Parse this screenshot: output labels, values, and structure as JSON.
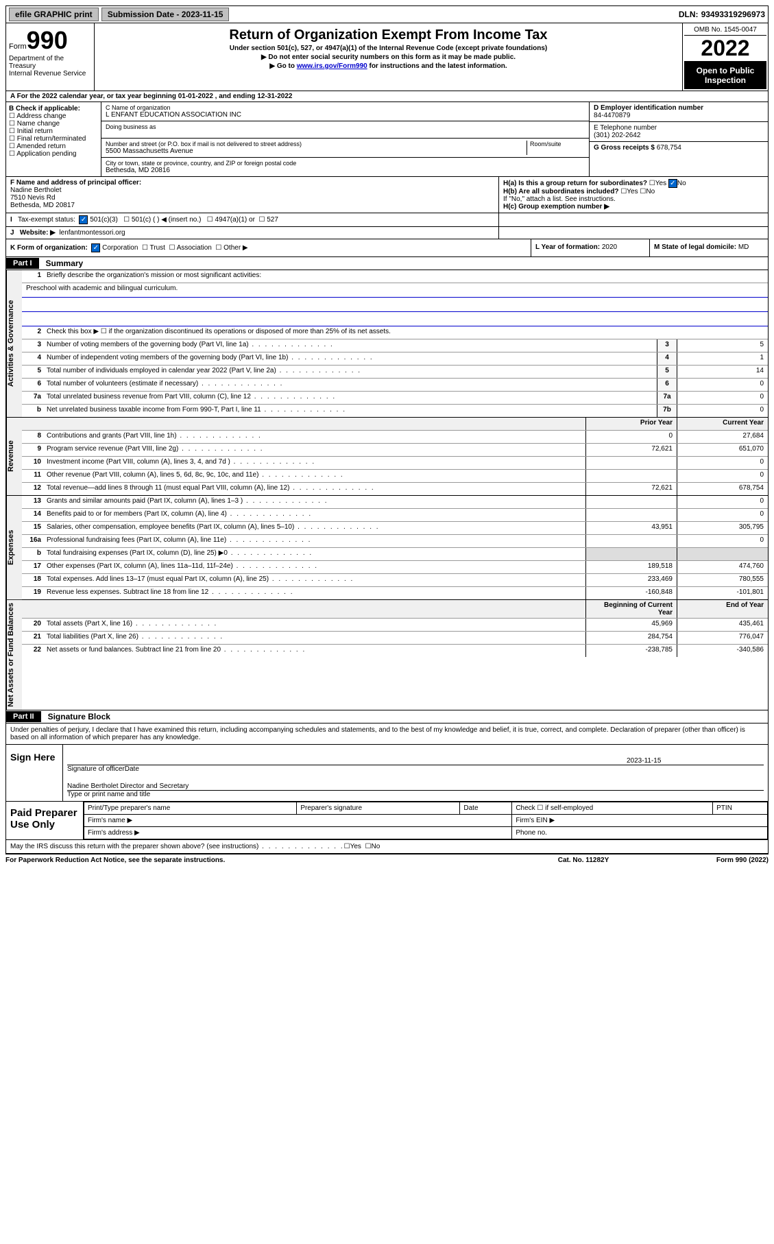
{
  "top": {
    "efile": "efile GRAPHIC print",
    "submission_label": "Submission Date - ",
    "submission_date": "2023-11-15",
    "dln_label": "DLN: ",
    "dln": "93493319296973"
  },
  "header": {
    "form_word": "Form",
    "form_num": "990",
    "title": "Return of Organization Exempt From Income Tax",
    "sub1": "Under section 501(c), 527, or 4947(a)(1) of the Internal Revenue Code (except private foundations)",
    "sub2": "▶ Do not enter social security numbers on this form as it may be made public.",
    "sub3_pre": "▶ Go to ",
    "sub3_link": "www.irs.gov/Form990",
    "sub3_post": " for instructions and the latest information.",
    "dept": "Department of the Treasury",
    "irs": "Internal Revenue Service",
    "omb": "OMB No. 1545-0047",
    "year": "2022",
    "open": "Open to Public Inspection"
  },
  "A": {
    "text": "A For the 2022 calendar year, or tax year beginning 01-01-2022     , and ending 12-31-2022"
  },
  "B": {
    "label": "B Check if applicable:",
    "opts": [
      "Address change",
      "Name change",
      "Initial return",
      "Final return/terminated",
      "Amended return",
      "Application pending"
    ]
  },
  "C": {
    "name_lbl": "C Name of organization",
    "name": "L ENFANT EDUCATION ASSOCIATION INC",
    "dba_lbl": "Doing business as",
    "street_lbl": "Number and street (or P.O. box if mail is not delivered to street address)",
    "room_lbl": "Room/suite",
    "street": "5500 Massachusetts Avenue",
    "city_lbl": "City or town, state or province, country, and ZIP or foreign postal code",
    "city": "Bethesda, MD  20816"
  },
  "D": {
    "lbl": "D Employer identification number",
    "val": "84-4470879"
  },
  "E": {
    "lbl": "E Telephone number",
    "val": "(301) 202-2642"
  },
  "G": {
    "lbl": "G Gross receipts $",
    "val": "678,754"
  },
  "F": {
    "lbl": "F  Name and address of principal officer:",
    "name": "Nadine Bertholet",
    "addr1": "7510 Nevis Rd",
    "addr2": "Bethesda, MD  20817"
  },
  "H": {
    "a": "H(a)  Is this a group return for subordinates?",
    "b": "H(b)  Are all subordinates included?",
    "b_note": "If \"No,\" attach a list. See instructions.",
    "c": "H(c)  Group exemption number ▶",
    "yes": "Yes",
    "no": "No"
  },
  "I": {
    "lbl": "I",
    "tax": "Tax-exempt status:",
    "c3": "501(c)(3)",
    "c": "501(c) (   ) ◀ (insert no.)",
    "a1": "4947(a)(1) or",
    "s527": "527"
  },
  "J": {
    "lbl": "J",
    "ws": "Website: ▶",
    "val": "lenfantmontessori.org"
  },
  "K": {
    "lbl": "K Form of organization:",
    "corp": "Corporation",
    "trust": "Trust",
    "assoc": "Association",
    "other": "Other ▶"
  },
  "L": {
    "lbl": "L Year of formation:",
    "val": "2020"
  },
  "M": {
    "lbl": "M State of legal domicile:",
    "val": "MD"
  },
  "part1": {
    "tab": "Part I",
    "title": "Summary"
  },
  "summary": {
    "l1_lbl": "Briefly describe the organization's mission or most significant activities:",
    "l1_txt": "Preschool with academic and bilingual curriculum.",
    "l2": "Check this box ▶ ☐  if the organization discontinued its operations or disposed of more than 25% of its net assets.",
    "l3": "Number of voting members of the governing body (Part VI, line 1a)",
    "l4": "Number of independent voting members of the governing body (Part VI, line 1b)",
    "l5": "Total number of individuals employed in calendar year 2022 (Part V, line 2a)",
    "l6": "Total number of volunteers (estimate if necessary)",
    "l7a": "Total unrelated business revenue from Part VIII, column (C), line 12",
    "l7b": "Net unrelated business taxable income from Form 990-T, Part I, line 11",
    "v3": "5",
    "v4": "1",
    "v5": "14",
    "v6": "0",
    "v7a": "0",
    "v7b": "0"
  },
  "revexp": {
    "price_hdr": "Prior Year",
    "cur_hdr": "Current Year",
    "rows": [
      {
        "n": "8",
        "t": "Contributions and grants (Part VIII, line 1h)",
        "p": "0",
        "c": "27,684"
      },
      {
        "n": "9",
        "t": "Program service revenue (Part VIII, line 2g)",
        "p": "72,621",
        "c": "651,070"
      },
      {
        "n": "10",
        "t": "Investment income (Part VIII, column (A), lines 3, 4, and 7d )",
        "p": "",
        "c": "0"
      },
      {
        "n": "11",
        "t": "Other revenue (Part VIII, column (A), lines 5, 6d, 8c, 9c, 10c, and 11e)",
        "p": "",
        "c": "0"
      },
      {
        "n": "12",
        "t": "Total revenue—add lines 8 through 11 (must equal Part VIII, column (A), line 12)",
        "p": "72,621",
        "c": "678,754"
      }
    ],
    "exp_rows": [
      {
        "n": "13",
        "t": "Grants and similar amounts paid (Part IX, column (A), lines 1–3 )",
        "p": "",
        "c": "0"
      },
      {
        "n": "14",
        "t": "Benefits paid to or for members (Part IX, column (A), line 4)",
        "p": "",
        "c": "0"
      },
      {
        "n": "15",
        "t": "Salaries, other compensation, employee benefits (Part IX, column (A), lines 5–10)",
        "p": "43,951",
        "c": "305,795"
      },
      {
        "n": "16a",
        "t": "Professional fundraising fees (Part IX, column (A), line 11e)",
        "p": "",
        "c": "0"
      },
      {
        "n": "b",
        "t": "Total fundraising expenses (Part IX, column (D), line 25) ▶0",
        "p": "—",
        "c": "—"
      },
      {
        "n": "17",
        "t": "Other expenses (Part IX, column (A), lines 11a–11d, 11f–24e)",
        "p": "189,518",
        "c": "474,760"
      },
      {
        "n": "18",
        "t": "Total expenses. Add lines 13–17 (must equal Part IX, column (A), line 25)",
        "p": "233,469",
        "c": "780,555"
      },
      {
        "n": "19",
        "t": "Revenue less expenses. Subtract line 18 from line 12",
        "p": "-160,848",
        "c": "-101,801"
      }
    ],
    "na_hdr_b": "Beginning of Current Year",
    "na_hdr_e": "End of Year",
    "na_rows": [
      {
        "n": "20",
        "t": "Total assets (Part X, line 16)",
        "p": "45,969",
        "c": "435,461"
      },
      {
        "n": "21",
        "t": "Total liabilities (Part X, line 26)",
        "p": "284,754",
        "c": "776,047"
      },
      {
        "n": "22",
        "t": "Net assets or fund balances. Subtract line 21 from line 20",
        "p": "-238,785",
        "c": "-340,586"
      }
    ]
  },
  "labels": {
    "gov": "Activities & Governance",
    "rev": "Revenue",
    "exp": "Expenses",
    "na": "Net Assets or Fund Balances"
  },
  "part2": {
    "tab": "Part II",
    "title": "Signature Block"
  },
  "sig": {
    "decl": "Under penalties of perjury, I declare that I have examined this return, including accompanying schedules and statements, and to the best of my knowledge and belief, it is true, correct, and complete. Declaration of preparer (other than officer) is based on all information of which preparer has any knowledge.",
    "sign_here": "Sign Here",
    "sig_of": "Signature of officer",
    "date": "Date",
    "date_val": "2023-11-15",
    "name": "Nadine Bertholet  Director and Secretary",
    "type_lbl": "Type or print name and title",
    "paid": "Paid Preparer Use Only",
    "pt_name": "Print/Type preparer's name",
    "prep_sig": "Preparer's signature",
    "pdate": "Date",
    "check_self": "Check ☐ if self-employed",
    "ptin": "PTIN",
    "firm_name": "Firm's name  ▶",
    "firm_ein": "Firm's EIN ▶",
    "firm_addr": "Firm's address ▶",
    "phone": "Phone no.",
    "irs_q": "May the IRS discuss this return with the preparer shown above? (see instructions)"
  },
  "foot": {
    "pra": "For Paperwork Reduction Act Notice, see the separate instructions.",
    "cat": "Cat. No. 11282Y",
    "form": "Form 990 (2022)"
  }
}
